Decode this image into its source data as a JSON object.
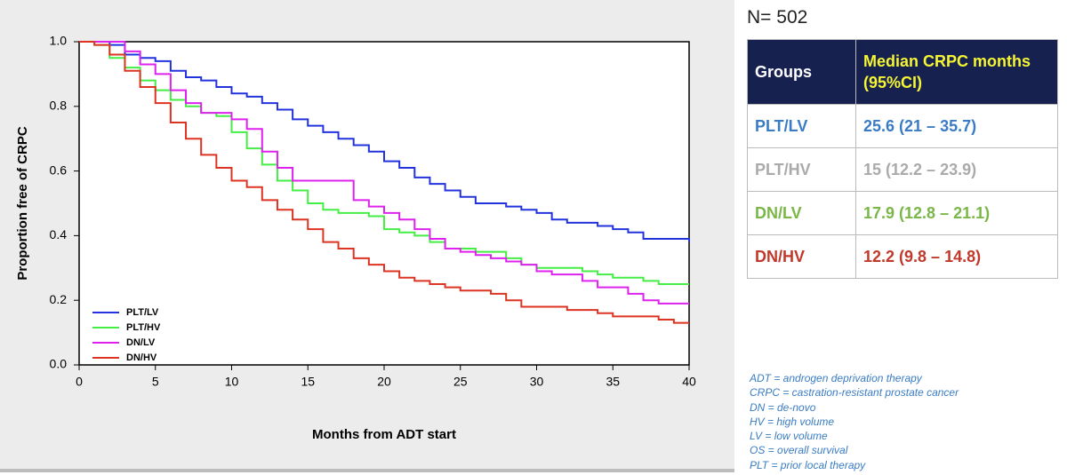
{
  "chart_data": {
    "type": "line",
    "step": true,
    "ylabel": "Proportion free of CRPC",
    "xlabel": "Months from ADT start",
    "x": [
      0,
      1,
      2,
      3,
      4,
      5,
      6,
      7,
      8,
      9,
      10,
      11,
      12,
      13,
      14,
      15,
      16,
      17,
      18,
      19,
      20,
      21,
      22,
      23,
      24,
      25,
      26,
      27,
      28,
      29,
      30,
      31,
      32,
      33,
      34,
      35,
      36,
      37,
      38,
      39,
      40
    ],
    "xlim": [
      0,
      40
    ],
    "xticks": [
      0,
      5,
      10,
      15,
      20,
      25,
      30,
      35,
      40
    ],
    "ylim": [
      0,
      1
    ],
    "yticks": [
      {
        "value": 0,
        "label": "0.0"
      },
      {
        "value": 0.2,
        "label": "0.2"
      },
      {
        "value": 0.4,
        "label": "0.4"
      },
      {
        "value": 0.6,
        "label": "0.6"
      },
      {
        "value": 0.8,
        "label": "0.8"
      },
      {
        "value": 1,
        "label": "1.0"
      }
    ],
    "legend": "lower left",
    "series": [
      {
        "name": "PLT/LV",
        "color": "#2233dd",
        "values": [
          1.0,
          1.0,
          0.99,
          0.96,
          0.95,
          0.94,
          0.91,
          0.89,
          0.88,
          0.86,
          0.84,
          0.83,
          0.81,
          0.79,
          0.76,
          0.74,
          0.72,
          0.7,
          0.68,
          0.66,
          0.63,
          0.61,
          0.58,
          0.56,
          0.54,
          0.52,
          0.5,
          0.5,
          0.49,
          0.48,
          0.47,
          0.45,
          0.44,
          0.44,
          0.43,
          0.42,
          0.41,
          0.39,
          0.39,
          0.39,
          0.38
        ]
      },
      {
        "name": "PLT/HV",
        "color": "#44ee44",
        "values": [
          1.0,
          0.99,
          0.95,
          0.92,
          0.88,
          0.85,
          0.82,
          0.8,
          0.78,
          0.77,
          0.72,
          0.67,
          0.62,
          0.57,
          0.54,
          0.5,
          0.48,
          0.47,
          0.47,
          0.46,
          0.42,
          0.41,
          0.4,
          0.38,
          0.36,
          0.36,
          0.35,
          0.35,
          0.33,
          0.31,
          0.3,
          0.3,
          0.3,
          0.29,
          0.28,
          0.27,
          0.27,
          0.26,
          0.25,
          0.25,
          0.25
        ]
      },
      {
        "name": "DN/LV",
        "color": "#dd22ee",
        "values": [
          1.0,
          1.0,
          1.0,
          0.97,
          0.93,
          0.9,
          0.85,
          0.81,
          0.78,
          0.78,
          0.76,
          0.73,
          0.66,
          0.61,
          0.57,
          0.57,
          0.57,
          0.57,
          0.51,
          0.49,
          0.47,
          0.45,
          0.42,
          0.39,
          0.36,
          0.35,
          0.34,
          0.33,
          0.32,
          0.31,
          0.29,
          0.28,
          0.28,
          0.26,
          0.24,
          0.24,
          0.22,
          0.2,
          0.19,
          0.19,
          0.19
        ]
      },
      {
        "name": "DN/HV",
        "color": "#dd3322",
        "values": [
          1.0,
          0.99,
          0.96,
          0.91,
          0.86,
          0.81,
          0.75,
          0.7,
          0.65,
          0.61,
          0.57,
          0.55,
          0.51,
          0.48,
          0.45,
          0.42,
          0.38,
          0.36,
          0.33,
          0.31,
          0.29,
          0.27,
          0.26,
          0.25,
          0.24,
          0.23,
          0.23,
          0.22,
          0.2,
          0.18,
          0.18,
          0.18,
          0.17,
          0.17,
          0.16,
          0.15,
          0.15,
          0.15,
          0.14,
          0.13,
          0.13
        ]
      }
    ]
  },
  "n_label": "N= 502",
  "table": {
    "header": [
      "Groups",
      "Median CRPC months (95%CI)"
    ],
    "rows": [
      {
        "color": "#3a7cc4",
        "cells": [
          "PLT/LV",
          "25.6 (21 – 35.7)"
        ]
      },
      {
        "color": "#aaaaaa",
        "cells": [
          "PLT/HV",
          "15 (12.2 – 23.9)"
        ]
      },
      {
        "color": "#7ab648",
        "cells": [
          "DN/LV",
          "17.9 (12.8 – 21.1)"
        ]
      },
      {
        "color": "#c0392b",
        "cells": [
          "DN/HV",
          "12.2 (9.8 – 14.8)"
        ]
      }
    ]
  },
  "notes": [
    "ADT = androgen deprivation therapy",
    "CRPC = castration-resistant prostate cancer",
    "DN = de-novo",
    "HV = high volume",
    "LV = low volume",
    "OS = overall survival",
    "PLT = prior local therapy"
  ]
}
